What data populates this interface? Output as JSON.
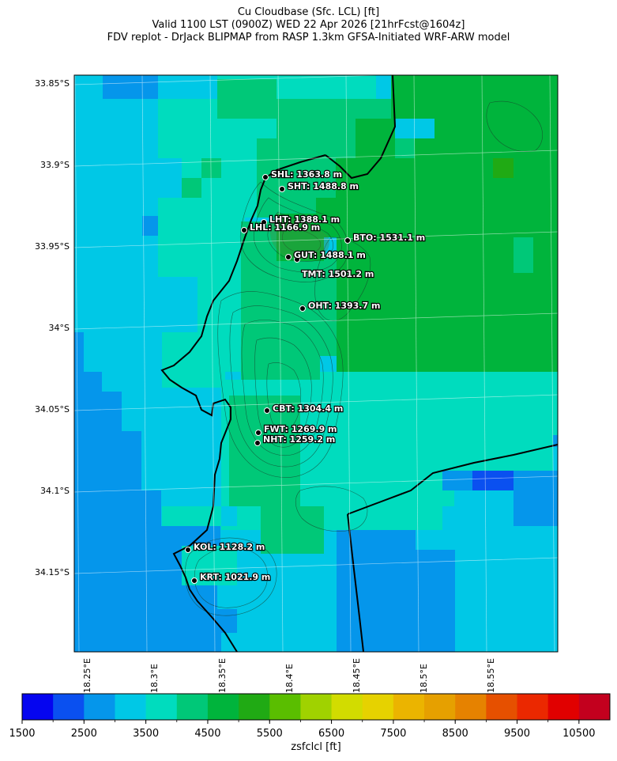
{
  "titles": {
    "line1": "Cu Cloudbase (Sfc. LCL) [ft]",
    "line2": "Valid 1100 LST (0900Z) WED 22 Apr 2026 [21hrFcst@1604z]",
    "line3": "FDV replot - DrJack BLIPMAP from RASP 1.3km GFSA-Initiated WRF-ARW model"
  },
  "map": {
    "lat_labels": [
      "33.85°S",
      "33.9°S",
      "33.95°S",
      "34°S",
      "34.05°S",
      "34.1°S",
      "34.15°S"
    ],
    "lon_labels": [
      "18.25°E",
      "18.3°E",
      "18.35°E",
      "18.4°E",
      "18.45°E",
      "18.5°E",
      "18.55°E"
    ],
    "stations": [
      {
        "label": "SHL: 1363.8 m"
      },
      {
        "label": "SHT: 1488.8 m"
      },
      {
        "label": "LHT: 1388.1 m"
      },
      {
        "label": "LHL: 1166.9 m"
      },
      {
        "label": "BTO: 1531.1 m"
      },
      {
        "label": "GUT: 1488.1 m"
      },
      {
        "label": "TMT: 1501.2 m"
      },
      {
        "label": "OHT: 1393.7 m"
      },
      {
        "label": "CBT: 1304.4 m"
      },
      {
        "label": "FWT: 1269.9 m"
      },
      {
        "label": "NHT: 1259.2 m"
      },
      {
        "label": "KOL: 1128.2 m"
      },
      {
        "label": "KRT: 1021.9 m"
      }
    ]
  },
  "colorbar": {
    "ticks": [
      "1500",
      "2500",
      "3500",
      "4500",
      "5500",
      "6500",
      "7500",
      "8500",
      "9500",
      "10500"
    ],
    "label": "zsfclcl [ft]",
    "colors": [
      "#0505f0",
      "#0a50f0",
      "#0596eb",
      "#00c8e6",
      "#00dcbe",
      "#00c878",
      "#00b43c",
      "#20aa14",
      "#5abe00",
      "#a0d200",
      "#d2dc00",
      "#e6d200",
      "#ebb400",
      "#e6a000",
      "#e68200",
      "#e65000",
      "#eb2800",
      "#e10000",
      "#c3001e"
    ]
  }
}
